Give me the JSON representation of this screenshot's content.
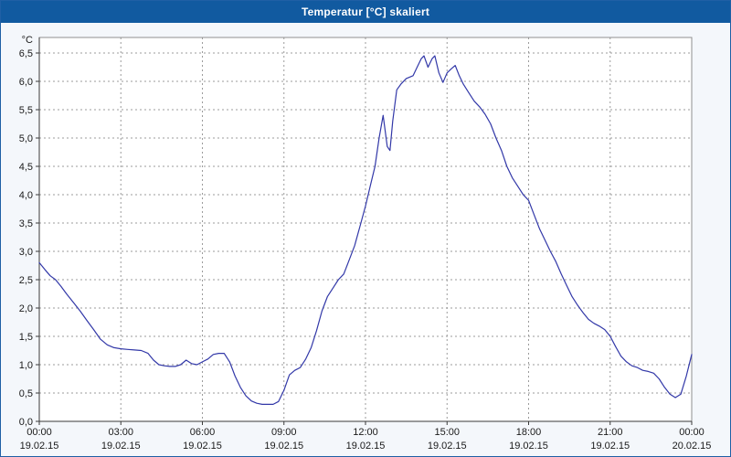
{
  "window": {
    "title": "Temperatur [°C] skaliert"
  },
  "chart_data": {
    "type": "line",
    "title": "Temperatur [°C] skaliert",
    "xlabel": "",
    "ylabel": "°C",
    "ylim": [
      0,
      6.5
    ],
    "xlim_hours": [
      0,
      24
    ],
    "grid": true,
    "legend": false,
    "line_color": "#3238a8",
    "grid_color": "#9b9b9b",
    "axis_color": "#3a3a3a",
    "plot_bg": "#ffffff",
    "titlebar_color": "#115aa0",
    "y_ticks": [
      {
        "value": 0.0,
        "label": "0,0"
      },
      {
        "value": 0.5,
        "label": "0,5"
      },
      {
        "value": 1.0,
        "label": "1,0"
      },
      {
        "value": 1.5,
        "label": "1,5"
      },
      {
        "value": 2.0,
        "label": "2,0"
      },
      {
        "value": 2.5,
        "label": "2,5"
      },
      {
        "value": 3.0,
        "label": "3,0"
      },
      {
        "value": 3.5,
        "label": "3,5"
      },
      {
        "value": 4.0,
        "label": "4,0"
      },
      {
        "value": 4.5,
        "label": "4,5"
      },
      {
        "value": 5.0,
        "label": "5,0"
      },
      {
        "value": 5.5,
        "label": "5,5"
      },
      {
        "value": 6.0,
        "label": "6,0"
      },
      {
        "value": 6.5,
        "label": "6,5"
      }
    ],
    "x_ticks": [
      {
        "hour": 0,
        "time": "00:00",
        "date": "19.02.15"
      },
      {
        "hour": 3,
        "time": "03:00",
        "date": "19.02.15"
      },
      {
        "hour": 6,
        "time": "06:00",
        "date": "19.02.15"
      },
      {
        "hour": 9,
        "time": "09:00",
        "date": "19.02.15"
      },
      {
        "hour": 12,
        "time": "12:00",
        "date": "19.02.15"
      },
      {
        "hour": 15,
        "time": "15:00",
        "date": "19.02.15"
      },
      {
        "hour": 18,
        "time": "18:00",
        "date": "19.02.15"
      },
      {
        "hour": 21,
        "time": "21:00",
        "date": "19.02.15"
      },
      {
        "hour": 24,
        "time": "00:00",
        "date": "20.02.15"
      }
    ],
    "series": [
      {
        "name": "Temperatur",
        "points": [
          [
            0,
            2.8
          ],
          [
            0.2,
            2.68
          ],
          [
            0.4,
            2.57
          ],
          [
            0.6,
            2.5
          ],
          [
            0.8,
            2.38
          ],
          [
            1,
            2.25
          ],
          [
            1.25,
            2.1
          ],
          [
            1.5,
            1.95
          ],
          [
            1.75,
            1.78
          ],
          [
            2,
            1.62
          ],
          [
            2.25,
            1.45
          ],
          [
            2.5,
            1.35
          ],
          [
            2.75,
            1.3
          ],
          [
            3,
            1.28
          ],
          [
            3.25,
            1.27
          ],
          [
            3.5,
            1.26
          ],
          [
            3.75,
            1.25
          ],
          [
            4,
            1.2
          ],
          [
            4.2,
            1.08
          ],
          [
            4.4,
            1.0
          ],
          [
            4.6,
            0.98
          ],
          [
            4.8,
            0.97
          ],
          [
            5,
            0.97
          ],
          [
            5.2,
            1.0
          ],
          [
            5.4,
            1.08
          ],
          [
            5.6,
            1.02
          ],
          [
            5.8,
            1.0
          ],
          [
            6,
            1.05
          ],
          [
            6.2,
            1.1
          ],
          [
            6.4,
            1.18
          ],
          [
            6.6,
            1.2
          ],
          [
            6.8,
            1.2
          ],
          [
            7,
            1.05
          ],
          [
            7.2,
            0.8
          ],
          [
            7.4,
            0.6
          ],
          [
            7.6,
            0.45
          ],
          [
            7.8,
            0.36
          ],
          [
            8,
            0.32
          ],
          [
            8.2,
            0.3
          ],
          [
            8.4,
            0.3
          ],
          [
            8.6,
            0.3
          ],
          [
            8.8,
            0.35
          ],
          [
            9,
            0.55
          ],
          [
            9.2,
            0.82
          ],
          [
            9.4,
            0.9
          ],
          [
            9.6,
            0.95
          ],
          [
            9.8,
            1.1
          ],
          [
            10,
            1.3
          ],
          [
            10.2,
            1.6
          ],
          [
            10.4,
            1.95
          ],
          [
            10.6,
            2.2
          ],
          [
            10.8,
            2.35
          ],
          [
            11,
            2.5
          ],
          [
            11.2,
            2.6
          ],
          [
            11.4,
            2.85
          ],
          [
            11.6,
            3.1
          ],
          [
            11.8,
            3.45
          ],
          [
            12,
            3.8
          ],
          [
            12.2,
            4.2
          ],
          [
            12.35,
            4.5
          ],
          [
            12.5,
            5.0
          ],
          [
            12.65,
            5.4
          ],
          [
            12.8,
            4.85
          ],
          [
            12.9,
            4.78
          ],
          [
            13,
            5.3
          ],
          [
            13.15,
            5.85
          ],
          [
            13.3,
            5.95
          ],
          [
            13.5,
            6.05
          ],
          [
            13.75,
            6.1
          ],
          [
            13.9,
            6.25
          ],
          [
            14.05,
            6.4
          ],
          [
            14.15,
            6.45
          ],
          [
            14.3,
            6.25
          ],
          [
            14.45,
            6.4
          ],
          [
            14.55,
            6.45
          ],
          [
            14.7,
            6.15
          ],
          [
            14.85,
            5.98
          ],
          [
            15,
            6.15
          ],
          [
            15.15,
            6.22
          ],
          [
            15.3,
            6.28
          ],
          [
            15.45,
            6.1
          ],
          [
            15.6,
            5.95
          ],
          [
            15.8,
            5.8
          ],
          [
            16,
            5.65
          ],
          [
            16.2,
            5.55
          ],
          [
            16.4,
            5.42
          ],
          [
            16.6,
            5.25
          ],
          [
            16.8,
            5.0
          ],
          [
            17,
            4.78
          ],
          [
            17.2,
            4.5
          ],
          [
            17.4,
            4.3
          ],
          [
            17.6,
            4.15
          ],
          [
            17.8,
            4.0
          ],
          [
            18,
            3.9
          ],
          [
            18.2,
            3.65
          ],
          [
            18.4,
            3.4
          ],
          [
            18.6,
            3.2
          ],
          [
            18.8,
            3.0
          ],
          [
            19,
            2.82
          ],
          [
            19.2,
            2.6
          ],
          [
            19.4,
            2.4
          ],
          [
            19.6,
            2.2
          ],
          [
            19.8,
            2.05
          ],
          [
            20,
            1.92
          ],
          [
            20.2,
            1.8
          ],
          [
            20.4,
            1.73
          ],
          [
            20.6,
            1.68
          ],
          [
            20.8,
            1.62
          ],
          [
            21,
            1.5
          ],
          [
            21.2,
            1.32
          ],
          [
            21.4,
            1.15
          ],
          [
            21.6,
            1.05
          ],
          [
            21.8,
            0.98
          ],
          [
            22,
            0.95
          ],
          [
            22.2,
            0.9
          ],
          [
            22.4,
            0.88
          ],
          [
            22.6,
            0.85
          ],
          [
            22.8,
            0.75
          ],
          [
            23,
            0.6
          ],
          [
            23.2,
            0.48
          ],
          [
            23.4,
            0.42
          ],
          [
            23.6,
            0.48
          ],
          [
            23.8,
            0.8
          ],
          [
            24,
            1.18
          ]
        ]
      }
    ]
  }
}
